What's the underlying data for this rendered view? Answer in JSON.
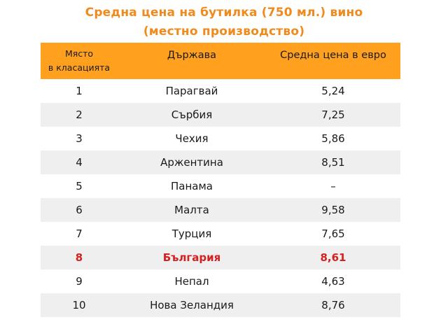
{
  "title": {
    "line1": "Средна цена на бутилка (750 мл.) вино",
    "line2": "(местно производство)",
    "color": "#f08a1c"
  },
  "table": {
    "header_color": "#ffa11f",
    "highlight_color": "#d42020",
    "headers": {
      "rank_line1": "Място",
      "rank_line2": "в класацията",
      "country": "Държава",
      "price": "Средна цена в евро"
    },
    "rows": [
      {
        "rank": "1",
        "country": "Парагвай",
        "price": "5,24"
      },
      {
        "rank": "2",
        "country": "Сърбия",
        "price": "7,25"
      },
      {
        "rank": "3",
        "country": "Чехия",
        "price": "5,86"
      },
      {
        "rank": "4",
        "country": "Аржентина",
        "price": "8,51"
      },
      {
        "rank": "5",
        "country": "Панама",
        "price": "–"
      },
      {
        "rank": "6",
        "country": "Малта",
        "price": "9,58"
      },
      {
        "rank": "7",
        "country": "Турция",
        "price": "7,65"
      },
      {
        "rank": "8",
        "country": "България",
        "price": "8,61"
      },
      {
        "rank": "9",
        "country": "Непал",
        "price": "4,63"
      },
      {
        "rank": "10",
        "country": "Нова Зеландия",
        "price": "8,76"
      }
    ]
  }
}
